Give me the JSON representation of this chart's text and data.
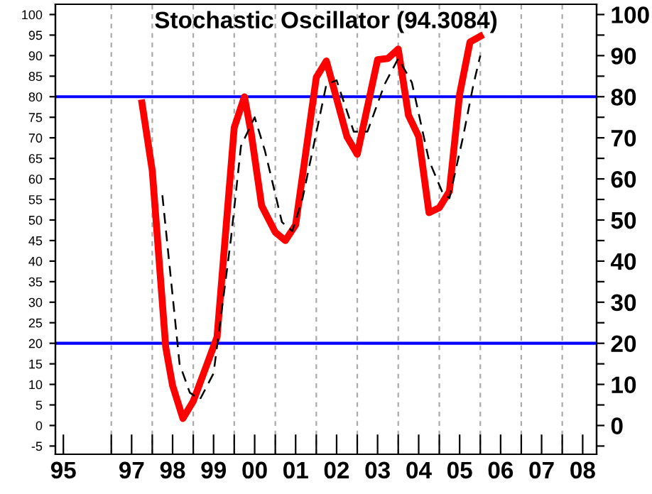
{
  "chart_data": {
    "type": "line",
    "title": "Stochastic Oscillator (94.3084)",
    "series": [
      {
        "color": "#ff0000",
        "line_style": "solid",
        "x": [
          "1997-10",
          "1998-01",
          "1998-05",
          "1998-07",
          "1998-10",
          "1999-01",
          "1999-06",
          "1999-08",
          "2000-01",
          "2000-04",
          "2000-06",
          "2000-09",
          "2001-01",
          "2001-04",
          "2001-07",
          "2002-01",
          "2002-04",
          "2002-10",
          "2003-01",
          "2003-07",
          "2003-10",
          "2004-01",
          "2004-04",
          "2004-07",
          "2004-10",
          "2005-01",
          "2005-04",
          "2005-07",
          "2005-10",
          "2006-01"
        ],
        "values": [
          78.5,
          62,
          19,
          9.7,
          1.7,
          5.9,
          17,
          21.5,
          72.5,
          80,
          71,
          53.5,
          47,
          45,
          48.8,
          84.7,
          88.7,
          70.3,
          66,
          89,
          89.3,
          91.6,
          75.5,
          70.3,
          51.8,
          53,
          57,
          80.6,
          93.3,
          94.7
        ]
      },
      {
        "color": "#000000",
        "line_style": "dashed",
        "x": [
          "1998-04",
          "1998-09",
          "1998-12",
          "1999-03",
          "1999-07",
          "1999-12",
          "2000-03",
          "2000-07",
          "2000-10",
          "2001-03",
          "2001-06",
          "2001-09",
          "2002-04",
          "2002-07",
          "2002-12",
          "2003-04",
          "2003-09",
          "2004-01",
          "2004-05",
          "2004-10",
          "2005-02",
          "2005-04",
          "2005-08",
          "2005-11",
          "2006-01"
        ],
        "values": [
          56,
          15,
          8,
          6.3,
          12.7,
          45,
          68,
          75,
          66.8,
          49.5,
          47.3,
          55.3,
          83,
          84,
          71.5,
          71.5,
          83,
          89.3,
          83.5,
          64.5,
          56.5,
          55.3,
          70.3,
          83,
          90
        ]
      }
    ],
    "xlim": [
      "1995-08-22",
      "2008-11-02"
    ],
    "xticks": [
      {
        "value": "1995-11",
        "label": "95"
      },
      {
        "value": "1997-01",
        "label": null
      },
      {
        "value": "1998-01",
        "label": null
      },
      {
        "value": "1999-01",
        "label": null
      },
      {
        "value": "2000-01",
        "label": null
      },
      {
        "value": "2001-01",
        "label": null
      },
      {
        "value": "2002-01",
        "label": null
      },
      {
        "value": "2003-01",
        "label": null
      },
      {
        "value": "2004-01",
        "label": null
      },
      {
        "value": "2005-01",
        "label": null
      },
      {
        "value": "2006-01",
        "label": null
      },
      {
        "value": "2007-01",
        "label": null
      },
      {
        "value": "2008-01",
        "label": null
      },
      {
        "value": "1997-07",
        "label": "97"
      },
      {
        "value": "1998-07",
        "label": "98"
      },
      {
        "value": "1999-07",
        "label": "99"
      },
      {
        "value": "2000-07",
        "label": "00"
      },
      {
        "value": "2001-07",
        "label": "01"
      },
      {
        "value": "2002-07",
        "label": "02"
      },
      {
        "value": "2003-07",
        "label": "03"
      },
      {
        "value": "2004-07",
        "label": "04"
      },
      {
        "value": "2005-07",
        "label": "05"
      },
      {
        "value": "2006-07",
        "label": "06"
      },
      {
        "value": "2007-07",
        "label": "07"
      },
      {
        "value": "2008-07",
        "label": "08"
      }
    ],
    "ylim": [
      -7,
      102.5
    ],
    "yticks": [
      -5,
      0,
      5,
      10,
      15,
      20,
      25,
      30,
      35,
      40,
      45,
      50,
      55,
      60,
      65,
      70,
      75,
      80,
      85,
      90,
      95,
      100
    ],
    "y2lim": [
      -7,
      102.5
    ],
    "y2ticks": [
      {
        "value": -5,
        "label": null
      },
      0,
      {
        "value": 5,
        "label": null
      },
      10,
      {
        "value": 15,
        "label": null
      },
      20,
      {
        "value": 25,
        "label": null
      },
      30,
      {
        "value": 35,
        "label": null
      },
      40,
      {
        "value": 45,
        "label": null
      },
      50,
      {
        "value": 55,
        "label": null
      },
      60,
      {
        "value": 65,
        "label": null
      },
      70,
      {
        "value": 75,
        "label": null
      },
      80,
      {
        "value": 85,
        "label": null
      },
      90,
      {
        "value": 95,
        "label": null
      },
      100
    ],
    "ref_lines": [
      {
        "axis": "y",
        "value": 80,
        "label": null,
        "color": "#0000ff"
      },
      {
        "axis": "y",
        "value": 20,
        "label": null,
        "color": "#0000ff"
      }
    ],
    "grid": "x",
    "legend": false,
    "marker": "none"
  }
}
